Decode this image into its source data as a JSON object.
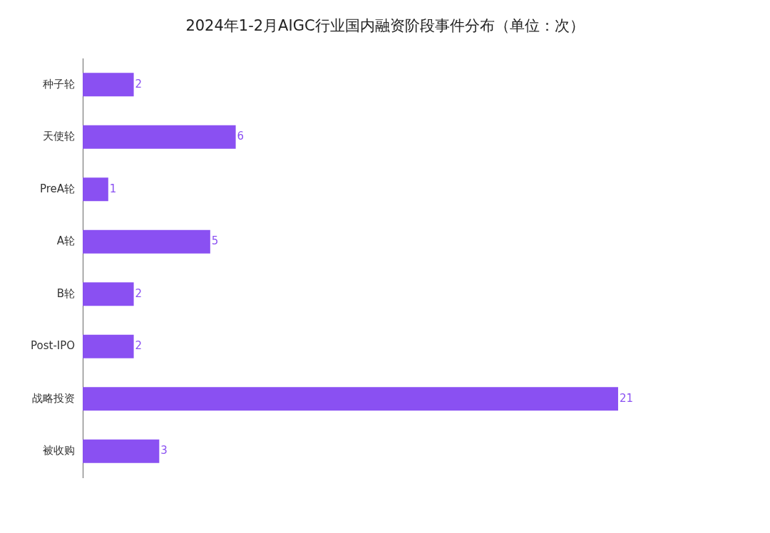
{
  "chart_data": {
    "type": "bar",
    "orientation": "horizontal",
    "title": "2024年1-2月AIGC行业国内融资阶段事件分布（单位：次）",
    "categories": [
      "种子轮",
      "天使轮",
      "PreA轮",
      "A轮",
      "B轮",
      "Post-IPO",
      "战略投资",
      "被收购"
    ],
    "values": [
      2,
      6,
      1,
      5,
      2,
      2,
      21,
      3
    ],
    "color": "#8a50f2",
    "data_labels": true,
    "legend": false
  }
}
